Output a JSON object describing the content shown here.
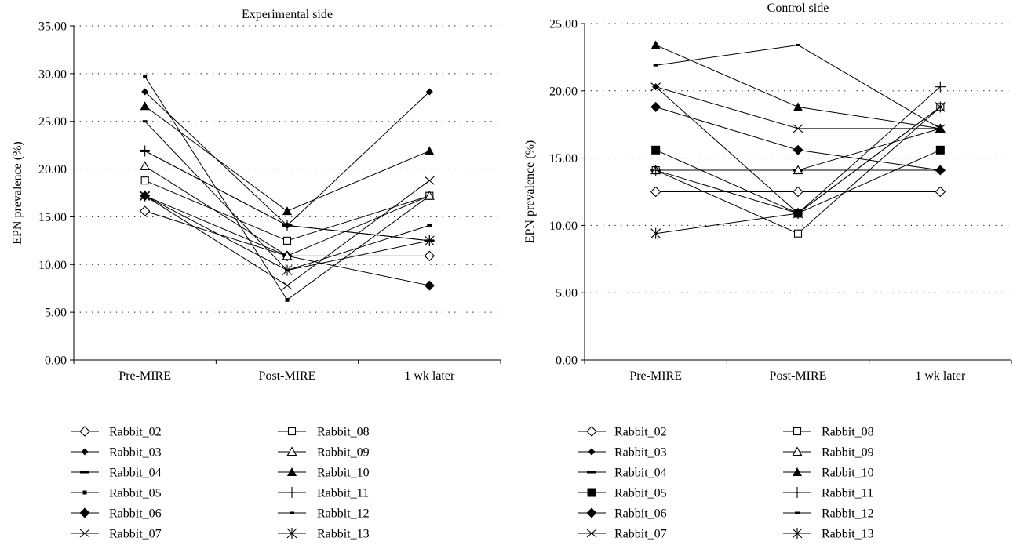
{
  "chart_data": [
    {
      "type": "line",
      "title": "Experimental side",
      "xlabel": "",
      "ylabel": "EPN prevalence (%)",
      "categories": [
        "Pre-MIRE",
        "Post-MIRE",
        "1 wk later"
      ],
      "ylim": [
        0,
        35
      ],
      "yticks": [
        "0.00",
        "5.00",
        "10.00",
        "15.00",
        "20.00",
        "25.00",
        "30.00",
        "35.00"
      ],
      "grid": "horizontal dotted",
      "legend_position": "bottom",
      "series": [
        {
          "name": "Rabbit_02",
          "marker": "diamond-open",
          "values": [
            15.6,
            10.9,
            10.9
          ]
        },
        {
          "name": "Rabbit_03",
          "marker": "diamond-filled-small",
          "values": [
            28.1,
            14.1,
            28.1
          ]
        },
        {
          "name": "Rabbit_04",
          "marker": "dash",
          "values": [
            21.9,
            14.1,
            12.5
          ]
        },
        {
          "name": "Rabbit_05",
          "marker": "square-filled-small",
          "values": [
            29.7,
            6.3,
            17.2
          ]
        },
        {
          "name": "Rabbit_06",
          "marker": "diamond-filled",
          "values": [
            17.2,
            10.9,
            7.8
          ]
        },
        {
          "name": "Rabbit_07",
          "marker": "x",
          "values": [
            17.2,
            7.8,
            18.8
          ]
        },
        {
          "name": "Rabbit_08",
          "marker": "square-open",
          "values": [
            18.8,
            12.5,
            17.2
          ]
        },
        {
          "name": "Rabbit_09",
          "marker": "triangle-open",
          "values": [
            20.3,
            10.9,
            17.2
          ]
        },
        {
          "name": "Rabbit_10",
          "marker": "triangle-filled",
          "values": [
            26.6,
            15.6,
            21.9
          ]
        },
        {
          "name": "Rabbit_11",
          "marker": "plus",
          "values": [
            21.9,
            14.1,
            12.5
          ]
        },
        {
          "name": "Rabbit_12",
          "marker": "dash-small",
          "values": [
            25.0,
            9.4,
            14.1
          ]
        },
        {
          "name": "Rabbit_13",
          "marker": "asterisk",
          "values": [
            17.2,
            9.4,
            12.5
          ]
        }
      ]
    },
    {
      "type": "line",
      "title": "Control side",
      "xlabel": "",
      "ylabel": "EPN prevalence (%)",
      "categories": [
        "Pre-MIRE",
        "Post-MIRE",
        "1 wk later"
      ],
      "ylim": [
        0,
        25
      ],
      "yticks": [
        "0.00",
        "5.00",
        "10.00",
        "15.00",
        "20.00",
        "25.00"
      ],
      "grid": "horizontal dotted",
      "legend_position": "bottom",
      "series": [
        {
          "name": "Rabbit_02",
          "marker": "diamond-open",
          "values": [
            12.5,
            12.5,
            12.5
          ]
        },
        {
          "name": "Rabbit_03",
          "marker": "diamond-filled-small",
          "values": [
            20.3,
            10.9,
            18.8
          ]
        },
        {
          "name": "Rabbit_04",
          "marker": "dash",
          "values": [
            14.1,
            14.1,
            14.1
          ]
        },
        {
          "name": "Rabbit_05",
          "marker": "square-filled",
          "values": [
            15.6,
            10.9,
            15.6
          ]
        },
        {
          "name": "Rabbit_06",
          "marker": "diamond-filled",
          "values": [
            18.8,
            15.6,
            14.1
          ]
        },
        {
          "name": "Rabbit_07",
          "marker": "x",
          "values": [
            20.3,
            17.2,
            17.2
          ]
        },
        {
          "name": "Rabbit_08",
          "marker": "square-open",
          "values": [
            14.1,
            9.4,
            18.8
          ]
        },
        {
          "name": "Rabbit_09",
          "marker": "triangle-open",
          "values": [
            14.1,
            14.1,
            17.2
          ]
        },
        {
          "name": "Rabbit_10",
          "marker": "triangle-filled",
          "values": [
            23.4,
            18.8,
            17.2
          ]
        },
        {
          "name": "Rabbit_11",
          "marker": "plus",
          "values": [
            14.1,
            10.9,
            20.3
          ]
        },
        {
          "name": "Rabbit_12",
          "marker": "dash-small",
          "values": [
            21.9,
            23.4,
            17.2
          ]
        },
        {
          "name": "Rabbit_13",
          "marker": "asterisk",
          "values": [
            9.4,
            10.9,
            18.8
          ]
        }
      ]
    }
  ]
}
